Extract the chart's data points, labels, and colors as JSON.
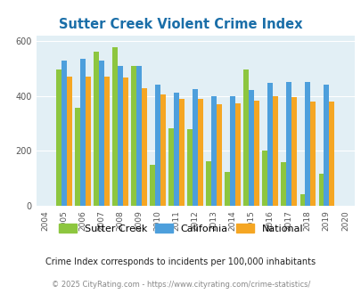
{
  "title": "Sutter Creek Violent Crime Index",
  "years": [
    2004,
    2005,
    2006,
    2007,
    2008,
    2009,
    2010,
    2011,
    2012,
    2013,
    2014,
    2015,
    2016,
    2017,
    2018,
    2019,
    2020
  ],
  "sutter_creek": [
    null,
    497,
    357,
    560,
    575,
    508,
    148,
    283,
    280,
    163,
    122,
    497,
    202,
    160,
    43,
    117,
    null
  ],
  "california": [
    null,
    527,
    533,
    527,
    508,
    508,
    440,
    410,
    425,
    400,
    400,
    422,
    448,
    450,
    450,
    440,
    null
  ],
  "national": [
    null,
    470,
    470,
    470,
    465,
    428,
    405,
    390,
    390,
    368,
    372,
    382,
    400,
    395,
    380,
    379,
    null
  ],
  "bar_colors": {
    "sutter_creek": "#8dc63f",
    "california": "#4d9fdc",
    "national": "#f5a623"
  },
  "bg_color": "#e2eff5",
  "ylim": [
    0,
    620
  ],
  "yticks": [
    0,
    200,
    400,
    600
  ],
  "legend_labels": [
    "Sutter Creek",
    "California",
    "National"
  ],
  "subtitle": "Crime Index corresponds to incidents per 100,000 inhabitants",
  "footer": "© 2025 CityRating.com - https://www.cityrating.com/crime-statistics/",
  "title_color": "#1a6ea8",
  "subtitle_color": "#222222",
  "footer_color": "#888888"
}
